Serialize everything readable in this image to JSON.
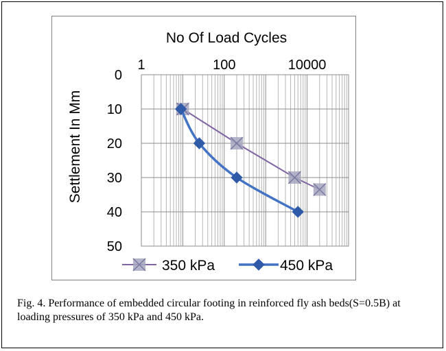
{
  "caption": "Fig. 4. Performance of embedded circular footing in reinforced fly ash beds(S=0.5B) at loading pressures of 350 kPa and 450 kPa.",
  "chart_data": {
    "type": "line",
    "xlabel": "No Of Load Cycles",
    "ylabel": "Settlement In Mm",
    "x_scale": "log",
    "x_axis_position": "top",
    "y_reversed": true,
    "xlim": [
      1,
      100000
    ],
    "ylim": [
      0,
      50
    ],
    "x_ticks": [
      1,
      100,
      10000
    ],
    "x_tick_labels": [
      "1",
      "100",
      "10000"
    ],
    "y_ticks": [
      0,
      10,
      20,
      30,
      40,
      50
    ],
    "y_tick_labels": [
      "0",
      "10",
      "20",
      "30",
      "40",
      "50"
    ],
    "grid": "vertical minor log gridlines, horizontal major gridlines",
    "legend_position": "bottom",
    "series": [
      {
        "name": "350 kPa",
        "color": "#8064a2",
        "marker": "square-asterisk",
        "marker_color": "#a6a6bf",
        "points": [
          [
            10,
            10
          ],
          [
            200,
            20
          ],
          [
            5000,
            30
          ],
          [
            20000,
            33.5
          ]
        ]
      },
      {
        "name": "450 kPa",
        "color": "#4472c4",
        "marker": "diamond",
        "marker_color": "#2e5aa8",
        "points": [
          [
            9,
            10
          ],
          [
            25,
            20
          ],
          [
            200,
            30
          ],
          [
            6000,
            40
          ]
        ]
      }
    ]
  }
}
